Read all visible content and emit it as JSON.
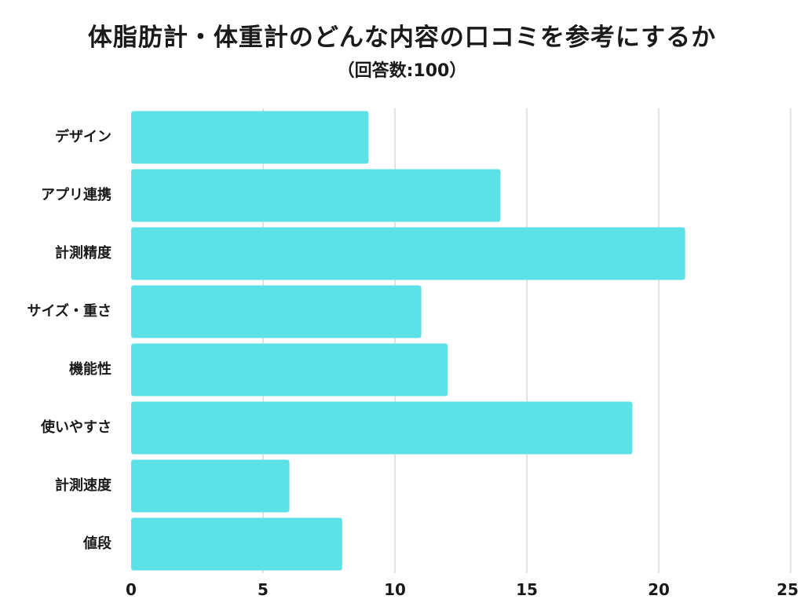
{
  "chart_data": {
    "type": "bar",
    "orientation": "horizontal",
    "title": "体脂肪計・体重計のどんな内容の口コミを参考にするか",
    "subtitle": "（回答数:100）",
    "categories": [
      "デザイン",
      "アプリ連携",
      "計測精度",
      "サイズ・重さ",
      "機能性",
      "使いやすさ",
      "計測速度",
      "値段"
    ],
    "values": [
      9,
      14,
      21,
      11,
      12,
      19,
      6,
      8
    ],
    "xlim": [
      0,
      25
    ],
    "xticks": [
      0,
      5,
      10,
      15,
      20,
      25
    ],
    "grid": true,
    "legend": "none",
    "bar_color": "#5ce1e6",
    "grid_color": "#d9d9d9"
  }
}
